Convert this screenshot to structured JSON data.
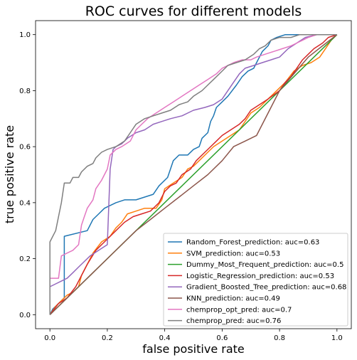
{
  "chart_data": {
    "type": "line",
    "title": "ROC curves for different models",
    "xlabel": "false positive rate",
    "ylabel": "true positive rate",
    "xlim": [
      -0.05,
      1.05
    ],
    "ylim": [
      -0.05,
      1.05
    ],
    "xticks": [
      "0.0",
      "0.2",
      "0.4",
      "0.6",
      "0.8",
      "1.0"
    ],
    "yticks": [
      "0.0",
      "0.2",
      "0.4",
      "0.6",
      "0.8",
      "1.0"
    ],
    "grid": false,
    "legend_position": "lower-right",
    "series": [
      {
        "name": "Random_Forest_prediction: auc=0.63",
        "color": "#1f77b4",
        "points": [
          [
            0,
            0
          ],
          [
            0.01,
            0.02
          ],
          [
            0.03,
            0.04
          ],
          [
            0.05,
            0.06
          ],
          [
            0.05,
            0.28
          ],
          [
            0.13,
            0.3
          ],
          [
            0.15,
            0.34
          ],
          [
            0.17,
            0.36
          ],
          [
            0.19,
            0.38
          ],
          [
            0.23,
            0.4
          ],
          [
            0.26,
            0.41
          ],
          [
            0.3,
            0.41
          ],
          [
            0.33,
            0.42
          ],
          [
            0.36,
            0.43
          ],
          [
            0.38,
            0.46
          ],
          [
            0.41,
            0.49
          ],
          [
            0.42,
            0.52
          ],
          [
            0.43,
            0.55
          ],
          [
            0.45,
            0.57
          ],
          [
            0.48,
            0.57
          ],
          [
            0.5,
            0.59
          ],
          [
            0.52,
            0.6
          ],
          [
            0.53,
            0.63
          ],
          [
            0.55,
            0.65
          ],
          [
            0.56,
            0.69
          ],
          [
            0.57,
            0.71
          ],
          [
            0.58,
            0.74
          ],
          [
            0.6,
            0.76
          ],
          [
            0.62,
            0.78
          ],
          [
            0.65,
            0.82
          ],
          [
            0.67,
            0.85
          ],
          [
            0.69,
            0.87
          ],
          [
            0.71,
            0.88
          ],
          [
            0.72,
            0.9
          ],
          [
            0.74,
            0.94
          ],
          [
            0.76,
            0.96
          ],
          [
            0.77,
            0.98
          ],
          [
            0.79,
            0.99
          ],
          [
            0.82,
            1.0
          ],
          [
            0.9,
            1.0
          ],
          [
            1.0,
            1.0
          ]
        ]
      },
      {
        "name": "SVM_prediction: auc=0.53",
        "color": "#ff7f0e",
        "points": [
          [
            0,
            0
          ],
          [
            0.02,
            0.03
          ],
          [
            0.04,
            0.05
          ],
          [
            0.06,
            0.07
          ],
          [
            0.08,
            0.08
          ],
          [
            0.1,
            0.1
          ],
          [
            0.11,
            0.14
          ],
          [
            0.13,
            0.18
          ],
          [
            0.15,
            0.22
          ],
          [
            0.18,
            0.26
          ],
          [
            0.21,
            0.28
          ],
          [
            0.23,
            0.31
          ],
          [
            0.25,
            0.33
          ],
          [
            0.27,
            0.36
          ],
          [
            0.3,
            0.37
          ],
          [
            0.33,
            0.38
          ],
          [
            0.37,
            0.38
          ],
          [
            0.39,
            0.41
          ],
          [
            0.4,
            0.45
          ],
          [
            0.43,
            0.47
          ],
          [
            0.46,
            0.49
          ],
          [
            0.48,
            0.52
          ],
          [
            0.5,
            0.53
          ],
          [
            0.52,
            0.55
          ],
          [
            0.55,
            0.58
          ],
          [
            0.57,
            0.6
          ],
          [
            0.6,
            0.62
          ],
          [
            0.63,
            0.64
          ],
          [
            0.66,
            0.66
          ],
          [
            0.68,
            0.69
          ],
          [
            0.7,
            0.72
          ],
          [
            0.73,
            0.74
          ],
          [
            0.76,
            0.77
          ],
          [
            0.79,
            0.8
          ],
          [
            0.82,
            0.83
          ],
          [
            0.85,
            0.87
          ],
          [
            0.88,
            0.89
          ],
          [
            0.91,
            0.9
          ],
          [
            0.94,
            0.92
          ],
          [
            0.96,
            0.95
          ],
          [
            0.98,
            0.98
          ],
          [
            1.0,
            1.0
          ]
        ]
      },
      {
        "name": "Dummy_Most_Frequent_prediction: auc=0.5",
        "color": "#2ca02c",
        "points": [
          [
            0,
            0
          ],
          [
            1.0,
            1.0
          ]
        ]
      },
      {
        "name": "Logistic_Regression_prediction: auc=0.53",
        "color": "#d62728",
        "points": [
          [
            0,
            0
          ],
          [
            0.03,
            0.04
          ],
          [
            0.06,
            0.06
          ],
          [
            0.09,
            0.1
          ],
          [
            0.11,
            0.14
          ],
          [
            0.13,
            0.18
          ],
          [
            0.16,
            0.23
          ],
          [
            0.19,
            0.26
          ],
          [
            0.21,
            0.28
          ],
          [
            0.23,
            0.3
          ],
          [
            0.26,
            0.33
          ],
          [
            0.29,
            0.35
          ],
          [
            0.32,
            0.36
          ],
          [
            0.35,
            0.37
          ],
          [
            0.38,
            0.4
          ],
          [
            0.4,
            0.44
          ],
          [
            0.42,
            0.46
          ],
          [
            0.44,
            0.47
          ],
          [
            0.46,
            0.5
          ],
          [
            0.49,
            0.52
          ],
          [
            0.51,
            0.55
          ],
          [
            0.54,
            0.58
          ],
          [
            0.56,
            0.6
          ],
          [
            0.58,
            0.62
          ],
          [
            0.6,
            0.64
          ],
          [
            0.63,
            0.66
          ],
          [
            0.66,
            0.68
          ],
          [
            0.68,
            0.7
          ],
          [
            0.7,
            0.73
          ],
          [
            0.73,
            0.75
          ],
          [
            0.76,
            0.77
          ],
          [
            0.8,
            0.8
          ],
          [
            0.82,
            0.83
          ],
          [
            0.84,
            0.85
          ],
          [
            0.86,
            0.88
          ],
          [
            0.88,
            0.91
          ],
          [
            0.9,
            0.93
          ],
          [
            0.92,
            0.95
          ],
          [
            0.95,
            0.97
          ],
          [
            0.97,
            0.99
          ],
          [
            1.0,
            1.0
          ]
        ]
      },
      {
        "name": "Gradient_Boosted_Tree_prediction: auc=0.68",
        "color": "#9467bd",
        "points": [
          [
            0,
            0.1
          ],
          [
            0.02,
            0.11
          ],
          [
            0.04,
            0.12
          ],
          [
            0.06,
            0.13
          ],
          [
            0.08,
            0.15
          ],
          [
            0.1,
            0.17
          ],
          [
            0.12,
            0.19
          ],
          [
            0.14,
            0.21
          ],
          [
            0.17,
            0.23
          ],
          [
            0.2,
            0.25
          ],
          [
            0.21,
            0.52
          ],
          [
            0.22,
            0.59
          ],
          [
            0.23,
            0.6
          ],
          [
            0.25,
            0.61
          ],
          [
            0.27,
            0.63
          ],
          [
            0.3,
            0.65
          ],
          [
            0.33,
            0.66
          ],
          [
            0.36,
            0.68
          ],
          [
            0.39,
            0.69
          ],
          [
            0.42,
            0.7
          ],
          [
            0.46,
            0.71
          ],
          [
            0.5,
            0.73
          ],
          [
            0.54,
            0.74
          ],
          [
            0.57,
            0.75
          ],
          [
            0.6,
            0.77
          ],
          [
            0.62,
            0.8
          ],
          [
            0.64,
            0.83
          ],
          [
            0.66,
            0.86
          ],
          [
            0.68,
            0.88
          ],
          [
            0.71,
            0.89
          ],
          [
            0.74,
            0.9
          ],
          [
            0.77,
            0.91
          ],
          [
            0.8,
            0.92
          ],
          [
            0.83,
            0.95
          ],
          [
            0.86,
            0.97
          ],
          [
            0.89,
            0.99
          ],
          [
            0.93,
            1.0
          ],
          [
            1.0,
            1.0
          ]
        ]
      },
      {
        "name": "KNN_prediction: auc=0.49",
        "color": "#8c564b",
        "points": [
          [
            0,
            0
          ],
          [
            0.05,
            0.05
          ],
          [
            0.1,
            0.1
          ],
          [
            0.15,
            0.15
          ],
          [
            0.2,
            0.2
          ],
          [
            0.25,
            0.25
          ],
          [
            0.3,
            0.3
          ],
          [
            0.35,
            0.34
          ],
          [
            0.4,
            0.38
          ],
          [
            0.45,
            0.42
          ],
          [
            0.5,
            0.46
          ],
          [
            0.55,
            0.5
          ],
          [
            0.6,
            0.55
          ],
          [
            0.64,
            0.6
          ],
          [
            0.68,
            0.62
          ],
          [
            0.72,
            0.64
          ],
          [
            0.8,
            0.8
          ],
          [
            0.85,
            0.86
          ],
          [
            0.9,
            0.92
          ],
          [
            0.95,
            0.96
          ],
          [
            1.0,
            1.0
          ]
        ]
      },
      {
        "name": "chemprop_opt_pred: auc=0.7",
        "color": "#e377c2",
        "points": [
          [
            0,
            0.13
          ],
          [
            0.03,
            0.13
          ],
          [
            0.04,
            0.21
          ],
          [
            0.06,
            0.22
          ],
          [
            0.08,
            0.23
          ],
          [
            0.1,
            0.25
          ],
          [
            0.11,
            0.32
          ],
          [
            0.12,
            0.35
          ],
          [
            0.13,
            0.38
          ],
          [
            0.15,
            0.41
          ],
          [
            0.16,
            0.45
          ],
          [
            0.18,
            0.48
          ],
          [
            0.2,
            0.52
          ],
          [
            0.21,
            0.57
          ],
          [
            0.23,
            0.59
          ],
          [
            0.25,
            0.6
          ],
          [
            0.28,
            0.62
          ],
          [
            0.3,
            0.66
          ],
          [
            0.32,
            0.68
          ],
          [
            0.34,
            0.7
          ],
          [
            0.37,
            0.72
          ],
          [
            0.4,
            0.74
          ],
          [
            0.43,
            0.76
          ],
          [
            0.46,
            0.78
          ],
          [
            0.49,
            0.8
          ],
          [
            0.52,
            0.82
          ],
          [
            0.55,
            0.84
          ],
          [
            0.58,
            0.86
          ],
          [
            0.6,
            0.88
          ],
          [
            0.62,
            0.89
          ],
          [
            0.64,
            0.9
          ],
          [
            0.67,
            0.91
          ],
          [
            0.7,
            0.91
          ],
          [
            0.72,
            0.92
          ],
          [
            0.75,
            0.93
          ],
          [
            0.78,
            0.94
          ],
          [
            0.81,
            0.95
          ],
          [
            0.84,
            0.96
          ],
          [
            0.86,
            0.97
          ],
          [
            0.88,
            0.98
          ],
          [
            0.9,
            0.99
          ],
          [
            0.93,
            1.0
          ],
          [
            1.0,
            1.0
          ]
        ]
      },
      {
        "name": "chemprop_pred: auc=0.76",
        "color": "#7f7f7f",
        "points": [
          [
            0,
            0
          ],
          [
            0,
            0.26
          ],
          [
            0.02,
            0.3
          ],
          [
            0.03,
            0.35
          ],
          [
            0.04,
            0.4
          ],
          [
            0.05,
            0.47
          ],
          [
            0.07,
            0.47
          ],
          [
            0.08,
            0.49
          ],
          [
            0.1,
            0.49
          ],
          [
            0.11,
            0.51
          ],
          [
            0.13,
            0.53
          ],
          [
            0.15,
            0.54
          ],
          [
            0.16,
            0.56
          ],
          [
            0.18,
            0.58
          ],
          [
            0.2,
            0.59
          ],
          [
            0.23,
            0.6
          ],
          [
            0.26,
            0.62
          ],
          [
            0.28,
            0.65
          ],
          [
            0.3,
            0.68
          ],
          [
            0.33,
            0.7
          ],
          [
            0.36,
            0.71
          ],
          [
            0.39,
            0.72
          ],
          [
            0.42,
            0.73
          ],
          [
            0.45,
            0.75
          ],
          [
            0.48,
            0.76
          ],
          [
            0.5,
            0.78
          ],
          [
            0.53,
            0.8
          ],
          [
            0.55,
            0.82
          ],
          [
            0.57,
            0.84
          ],
          [
            0.6,
            0.87
          ],
          [
            0.62,
            0.89
          ],
          [
            0.65,
            0.9
          ],
          [
            0.68,
            0.91
          ],
          [
            0.71,
            0.93
          ],
          [
            0.73,
            0.95
          ],
          [
            0.75,
            0.96
          ],
          [
            0.77,
            0.98
          ],
          [
            0.8,
            0.99
          ],
          [
            0.84,
            0.99
          ],
          [
            0.87,
            1.0
          ],
          [
            1.0,
            1.0
          ]
        ]
      }
    ]
  }
}
